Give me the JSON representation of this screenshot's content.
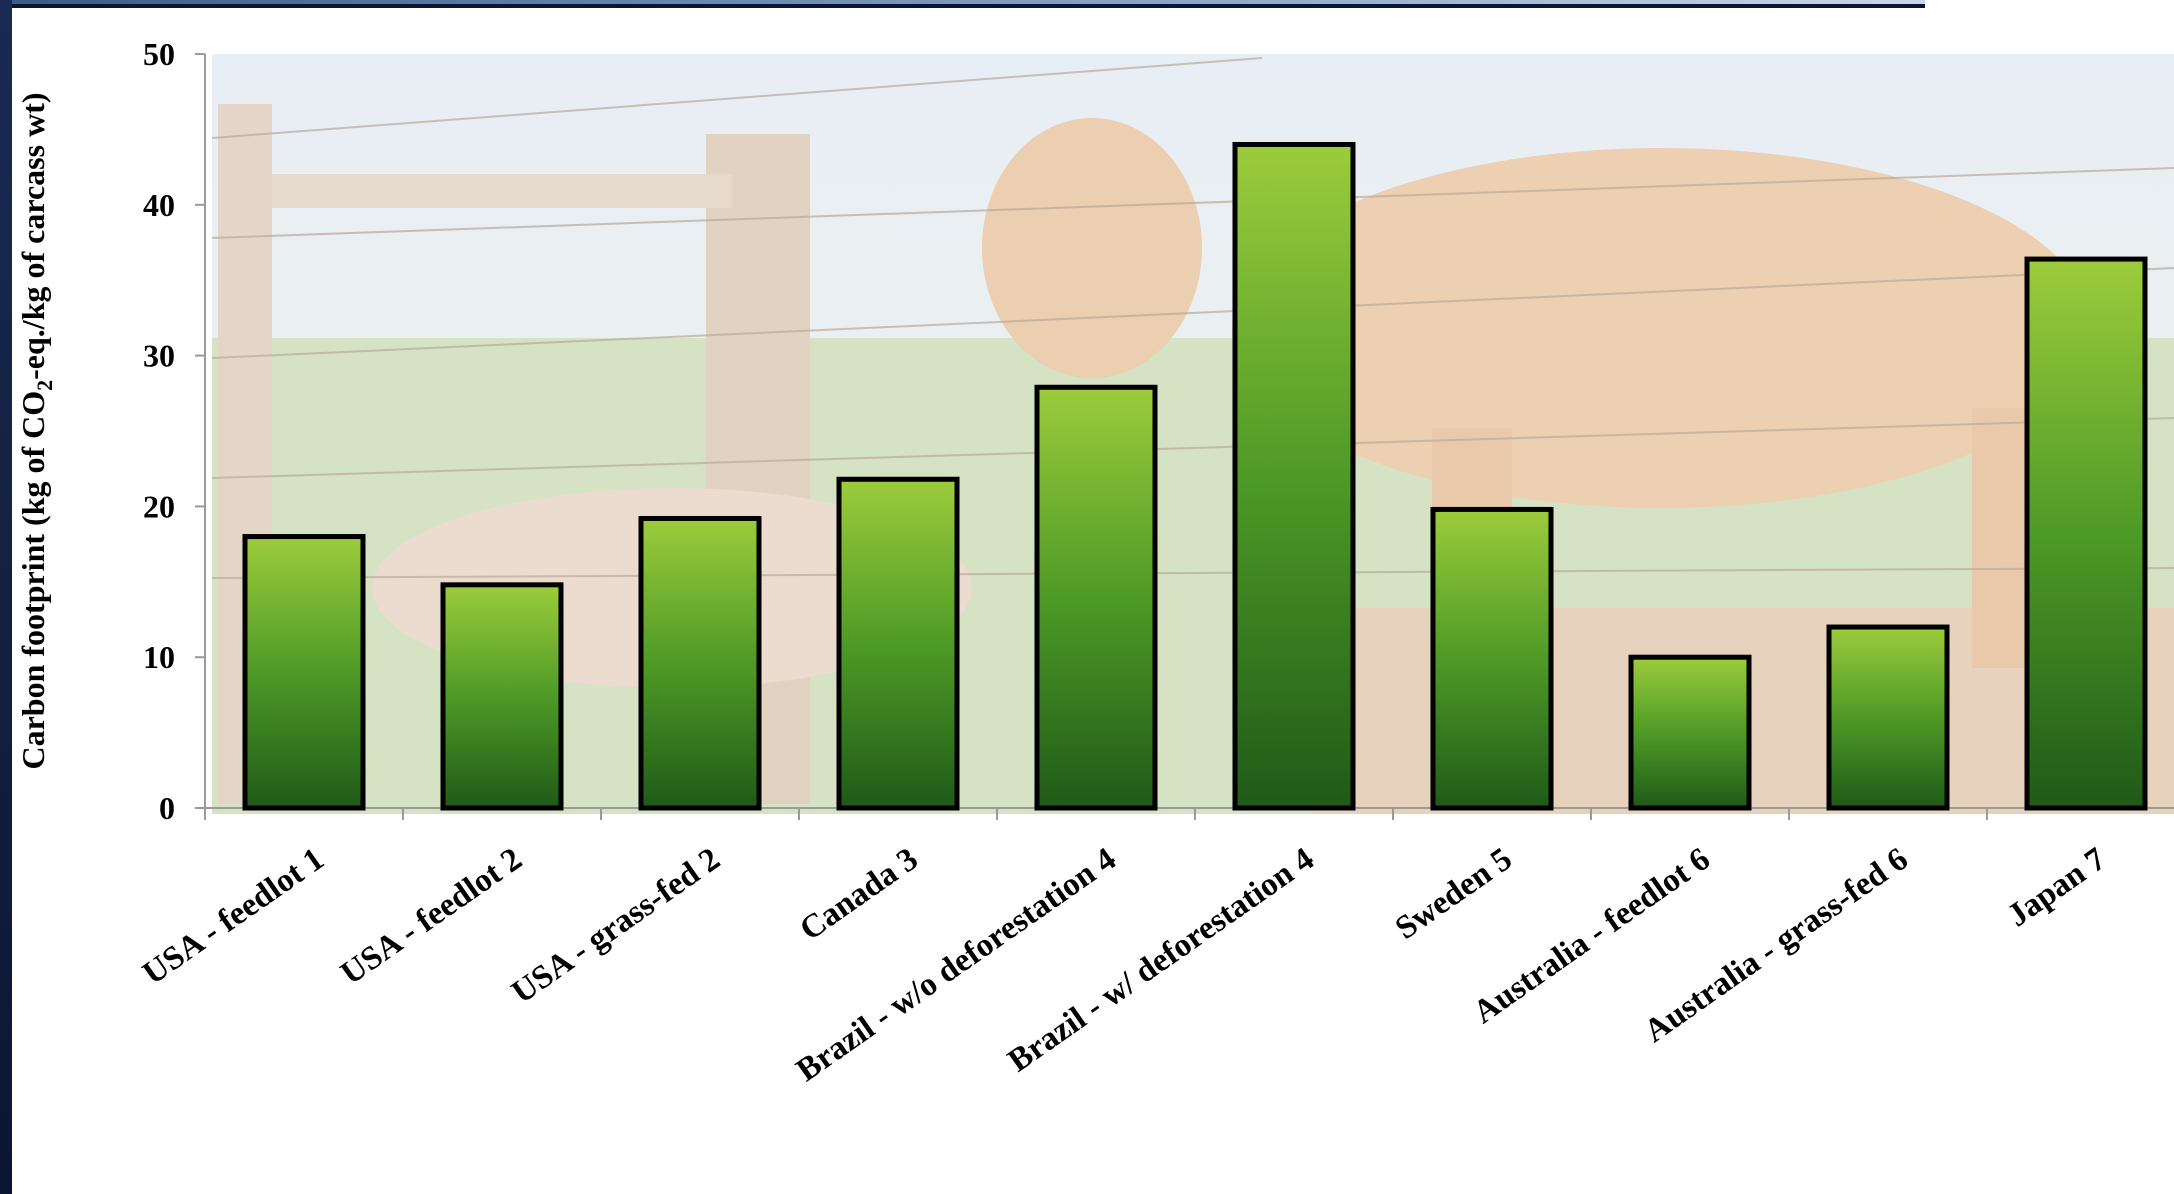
{
  "chart_data": {
    "type": "bar",
    "title": "",
    "ylabel": "Carbon footprint (kg of CO2-eq./kg of carcass wt)",
    "ylabel_parts": {
      "before": "Carbon footprint (kg of CO",
      "sub": "2",
      "after": "-eq./kg of carcass wt)"
    },
    "xlabel": "",
    "ylim": [
      0,
      50
    ],
    "yticks": [
      0,
      10,
      20,
      30,
      40,
      50
    ],
    "grid": false,
    "categories": [
      "USA - feedlot 1",
      "USA - feedlot 2",
      "USA - grass-fed 2",
      "Canada 3",
      "Brazil - w/o deforestation 4",
      "Brazil - w/ deforestation 4",
      "Sweden 5",
      "Australia - feedlot 6",
      "Australia - grass-fed 6",
      "Japan 7"
    ],
    "values": [
      18,
      14.8,
      19.2,
      21.8,
      27.9,
      44,
      19.8,
      10,
      12,
      36.4
    ],
    "colors": {
      "bar_top": "#9ccc3c",
      "bar_mid": "#4e9a26",
      "bar_bottom": "#1f5a18",
      "bar_outline": "#000000",
      "photo_sky": "#e3ecf4",
      "photo_grass": "#d6e3c6",
      "photo_cattle": "#ecccae"
    },
    "background": "faded photograph of cattle behind a wire fence"
  }
}
